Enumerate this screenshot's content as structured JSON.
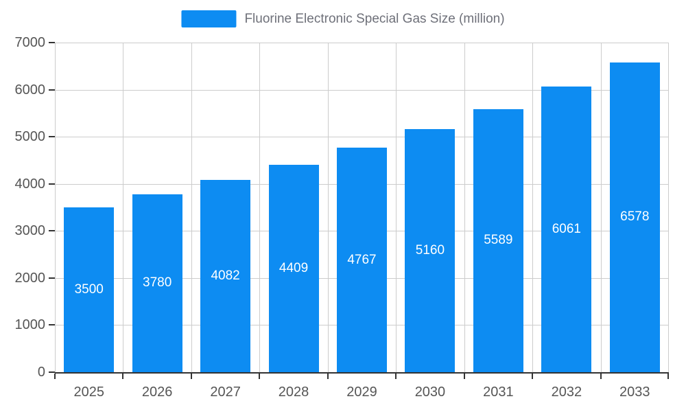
{
  "chart_data": {
    "type": "bar",
    "title": "Fluorine Electronic Special Gas Size (million)",
    "categories": [
      "2025",
      "2026",
      "2027",
      "2028",
      "2029",
      "2030",
      "2031",
      "2032",
      "2033"
    ],
    "values": [
      3500,
      3780,
      4082,
      4409,
      4767,
      5160,
      5589,
      6061,
      6578
    ],
    "xlabel": "",
    "ylabel": "",
    "ylim": [
      0,
      7000
    ],
    "ytick_step": 1000,
    "grid": true,
    "legend_position": "top",
    "data_labels": "inside-center",
    "bar_color": "#0d8cf2",
    "label_color": "#ffffff",
    "axis_text_color": "#555555",
    "legend_text_color": "#6e7079",
    "grid_color": "#cccccc",
    "axis_line_color": "#333333",
    "background_color": "#ffffff"
  }
}
